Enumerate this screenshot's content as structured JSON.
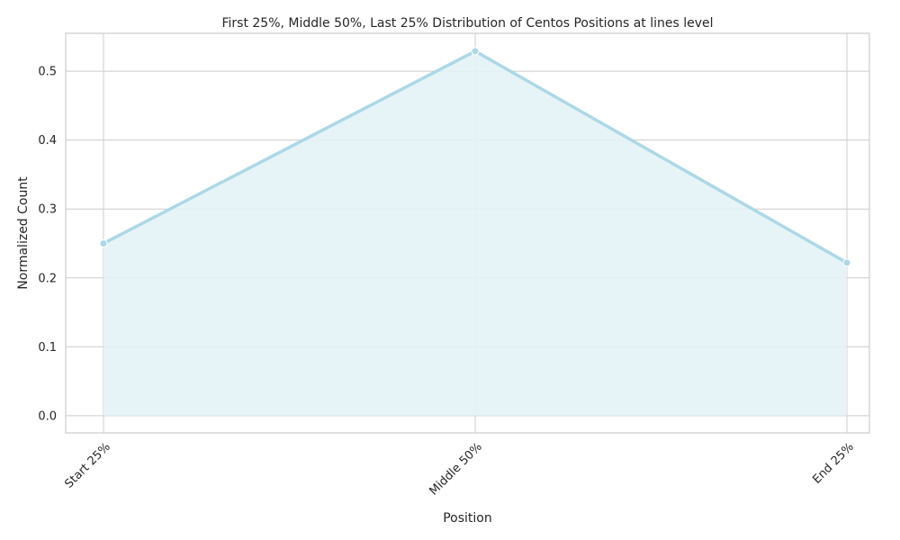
{
  "chart_data": {
    "type": "area",
    "title": "First 25%, Middle 50%, Last 25% Distribution of Centos Positions at lines level",
    "xlabel": "Position",
    "ylabel": "Normalized Count",
    "categories": [
      "Start 25%",
      "Middle 50%",
      "End 25%"
    ],
    "series": [
      {
        "values": [
          0.25,
          0.529,
          0.222
        ]
      }
    ],
    "ylim": [
      -0.025,
      0.555
    ],
    "yticks": [
      "0.0",
      "0.1",
      "0.2",
      "0.3",
      "0.4",
      "0.5"
    ],
    "grid": true,
    "line_color": "#add8e6",
    "fill_color": "#e3f3f7"
  }
}
